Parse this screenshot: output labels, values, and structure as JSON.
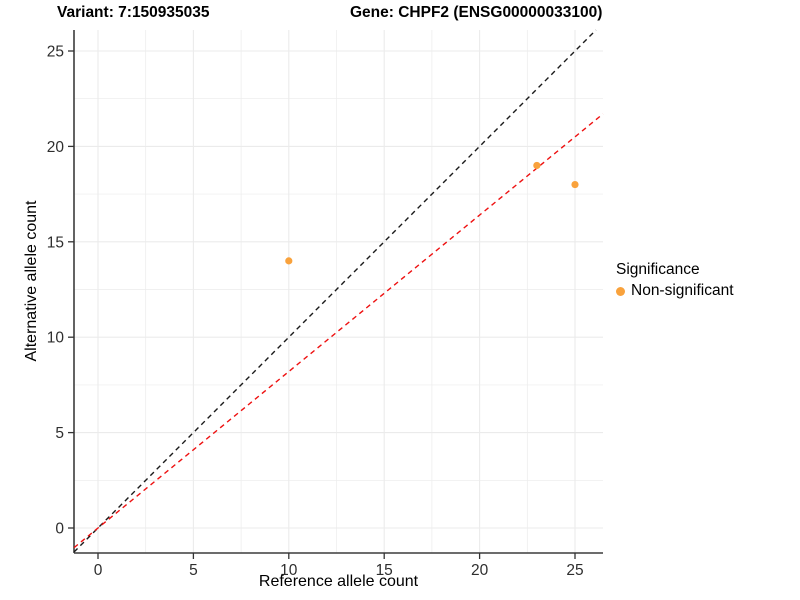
{
  "titles": {
    "variant": "Variant: 7:150935035",
    "gene": "Gene: CHPF2 (ENSG00000033100)"
  },
  "chart_data": {
    "type": "scatter",
    "xlabel": "Reference allele count",
    "ylabel": "Alternative allele count",
    "xticks": [
      0,
      5,
      10,
      15,
      20,
      25
    ],
    "yticks": [
      0,
      5,
      10,
      15,
      20,
      25
    ],
    "xlim": [
      -1.3,
      26.5
    ],
    "ylim": [
      -1.3,
      26.1
    ],
    "grid": {
      "color": "#ebebeb",
      "min": 0,
      "max": 25,
      "minor_step": 2.5,
      "major_step": 5
    },
    "series": [
      {
        "name": "Non-significant",
        "color": "#f9a23c",
        "points": [
          [
            10,
            14
          ],
          [
            23,
            19
          ],
          [
            25,
            18
          ]
        ]
      }
    ],
    "lines": [
      {
        "name": "identity-line",
        "slope": 1.0,
        "intercept": 0,
        "color": "#1a1a1a",
        "style": "dashed"
      },
      {
        "name": "fit-line",
        "slope": 0.82,
        "intercept": 0,
        "color": "#ee1111",
        "style": "dashed"
      }
    ],
    "legend": {
      "title": "Significance",
      "position": "right",
      "items": [
        {
          "label": "Non-significant",
          "color": "#f9a23c"
        }
      ]
    }
  }
}
